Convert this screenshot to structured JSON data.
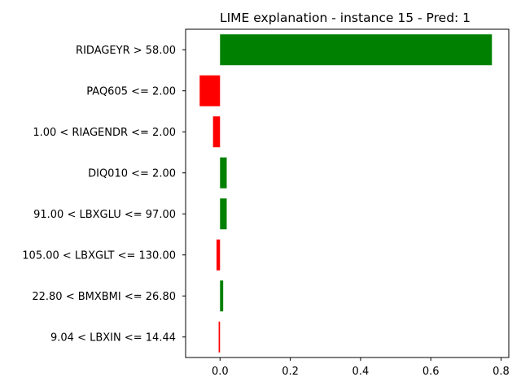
{
  "chart_data": {
    "type": "bar",
    "orientation": "horizontal",
    "title": "LIME explanation - instance 15 - Pred: 1",
    "xlabel": "",
    "ylabel": "",
    "categories": [
      "RIDAGEYR > 58.00",
      "PAQ605 <= 2.00",
      "1.00 < RIAGENDR <= 2.00",
      "DIQ010 <= 2.00",
      "91.00 < LBXGLU <= 97.00",
      "105.00 < LBXGLT <= 130.00",
      "22.80 < BMXBMI <= 26.80",
      "9.04 < LBXIN <= 14.44"
    ],
    "values": [
      0.774,
      -0.058,
      -0.02,
      0.019,
      0.019,
      -0.01,
      0.009,
      -0.004
    ],
    "xlim": [
      -0.098,
      0.822
    ],
    "xticks": [
      0.0,
      0.2,
      0.4,
      0.6,
      0.8
    ],
    "xtick_labels": [
      "0.0",
      "0.2",
      "0.4",
      "0.6",
      "0.8"
    ],
    "grid": false,
    "colors": {
      "positive": "#008000",
      "negative": "#ff0000"
    }
  }
}
